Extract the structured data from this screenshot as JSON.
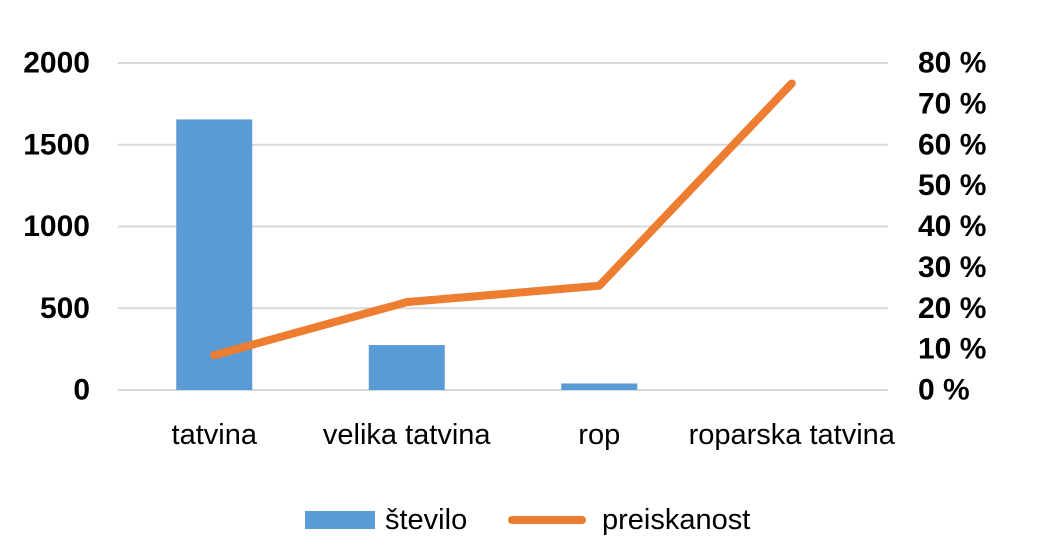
{
  "chart_data": {
    "type": "bar",
    "categories": [
      "tatvina",
      "velika tatvina",
      "rop",
      "roparska tatvina"
    ],
    "series": [
      {
        "name": "število",
        "type": "bar",
        "axis": "left",
        "values": [
          1655,
          275,
          40,
          0
        ],
        "color": "#5B9BD5"
      },
      {
        "name": "preiskanost",
        "type": "line",
        "axis": "right",
        "values": [
          8.5,
          21.5,
          25.5,
          75
        ],
        "color": "#ED7D31"
      }
    ],
    "y_left": {
      "ylim": [
        0,
        2000
      ],
      "ticks": [
        0,
        500,
        1000,
        1500,
        2000
      ],
      "tick_labels": [
        "0",
        "500",
        "1000",
        "1500",
        "2000"
      ]
    },
    "y_right": {
      "ylim": [
        0,
        80
      ],
      "ticks": [
        0,
        10,
        20,
        30,
        40,
        50,
        60,
        70,
        80
      ],
      "tick_labels": [
        "0 %",
        "10 %",
        "20 %",
        "30 %",
        "40 %",
        "50 %",
        "60 %",
        "70 %",
        "80 %"
      ]
    },
    "title": "",
    "xlabel": "",
    "ylabel": "",
    "grid": true,
    "gridline_color": "#D9D9D9",
    "legend_position": "bottom"
  }
}
